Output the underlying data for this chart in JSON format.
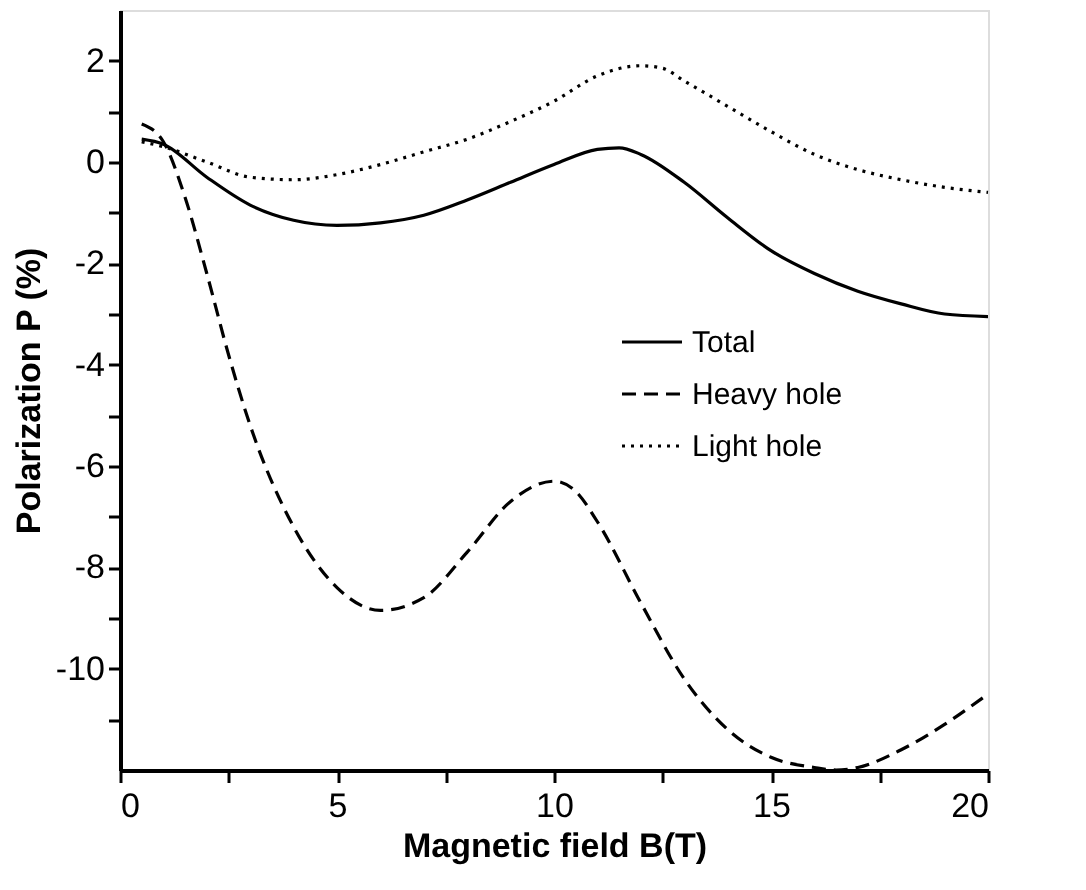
{
  "chart_data": {
    "type": "line",
    "xlabel": "Magnetic field B(T)",
    "ylabel": "Polarization P (%)",
    "xlim": [
      0,
      20
    ],
    "ylim": [
      -12,
      3
    ],
    "xticks": [
      0,
      {
        "value": 2.5,
        "label": null
      },
      5,
      {
        "value": 7.5,
        "label": null
      },
      10,
      {
        "value": 12.5,
        "label": null
      },
      15,
      {
        "value": 17.5,
        "label": null
      },
      20
    ],
    "yticks": [
      {
        "value": -11,
        "label": null
      },
      -10,
      {
        "value": -9,
        "label": null
      },
      -8,
      {
        "value": -7,
        "label": null
      },
      -6,
      {
        "value": -5,
        "label": null
      },
      -4,
      {
        "value": -3,
        "label": null
      },
      -2,
      {
        "value": -1,
        "label": null
      },
      0,
      {
        "value": 1,
        "label": null
      },
      2
    ],
    "grid": false,
    "legend": "center",
    "marker": "none",
    "series": [
      {
        "name": "Total",
        "color": "#000000",
        "line_style": "solid",
        "x": [
          0.5,
          1,
          2,
          3,
          4,
          5,
          6,
          7,
          8,
          9,
          10,
          11,
          11.5,
          12,
          13,
          14,
          15,
          16,
          17,
          18,
          19,
          20
        ],
        "values": [
          0.45,
          0.35,
          -0.3,
          -0.85,
          -1.15,
          -1.25,
          -1.2,
          -1.05,
          -0.75,
          -0.4,
          -0.05,
          0.25,
          0.28,
          0.15,
          -0.4,
          -1.1,
          -1.75,
          -2.2,
          -2.55,
          -2.8,
          -3.0,
          -3.05
        ]
      },
      {
        "name": "Heavy hole",
        "color": "#000000",
        "line_style": "dashed",
        "x": [
          0.5,
          1,
          1.5,
          2,
          2.5,
          3,
          4,
          5,
          6,
          7,
          8,
          9,
          10,
          10.5,
          11,
          12,
          13,
          14,
          15,
          16,
          16.5,
          17,
          18,
          19,
          20
        ],
        "values": [
          0.75,
          0.4,
          -0.7,
          -2.2,
          -3.8,
          -5.2,
          -7.2,
          -8.4,
          -8.85,
          -8.6,
          -7.7,
          -6.7,
          -6.3,
          -6.5,
          -7.1,
          -8.7,
          -10.2,
          -11.2,
          -11.75,
          -11.95,
          -12.0,
          -11.95,
          -11.6,
          -11.1,
          -10.5
        ]
      },
      {
        "name": "Light hole",
        "color": "#000000",
        "line_style": "dotted",
        "x": [
          0.5,
          1,
          2,
          3,
          4,
          5,
          6,
          7,
          8,
          9,
          10,
          11,
          12,
          12.5,
          13,
          14,
          15,
          16,
          17,
          18,
          19,
          20
        ],
        "values": [
          0.4,
          0.3,
          0,
          -0.3,
          -0.35,
          -0.25,
          -0.05,
          0.2,
          0.45,
          0.8,
          1.2,
          1.7,
          1.9,
          1.85,
          1.6,
          1.1,
          0.6,
          0.15,
          -0.15,
          -0.35,
          -0.5,
          -0.6
        ]
      }
    ]
  }
}
